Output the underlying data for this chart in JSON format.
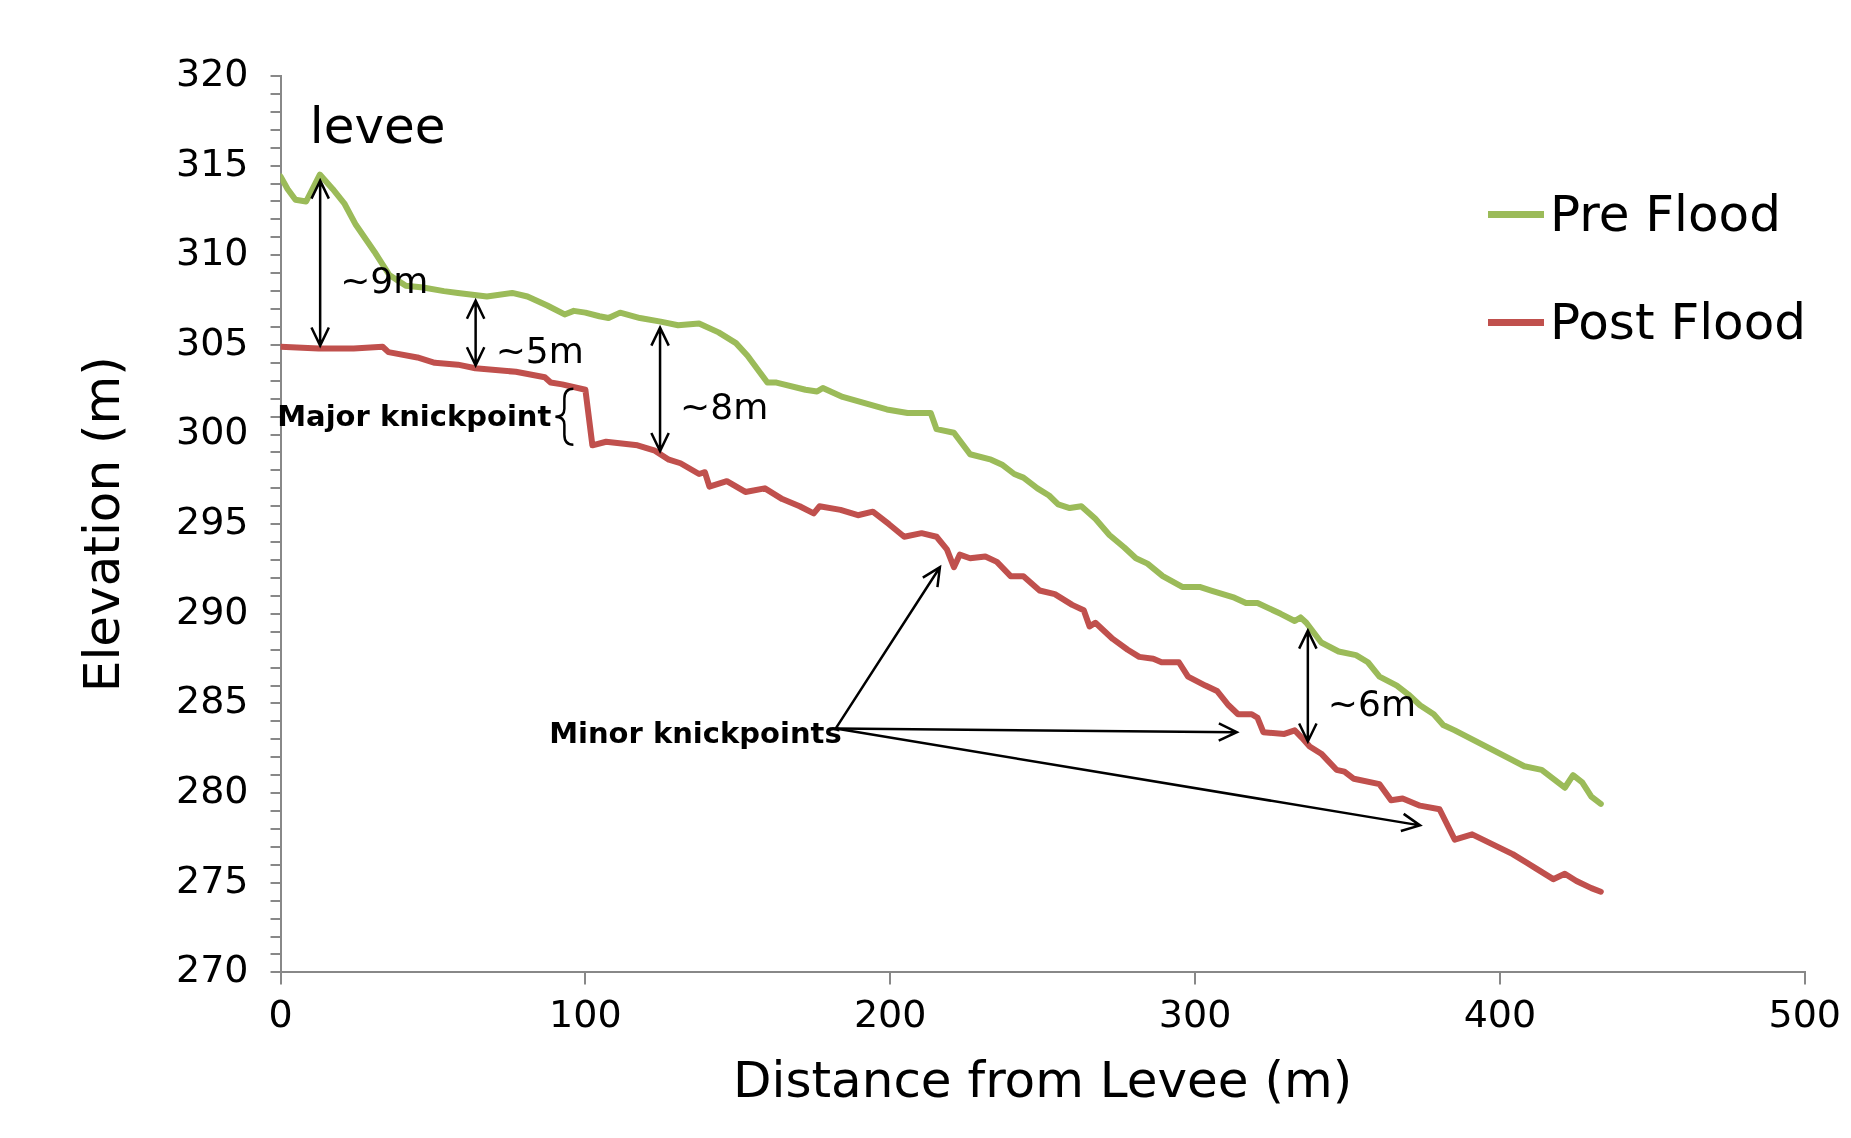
{
  "chart_data": {
    "type": "line",
    "xlabel": "Distance from Levee (m)",
    "ylabel": "Elevation (m)",
    "xlim": [
      0,
      500
    ],
    "xticks": [
      0,
      100,
      200,
      300,
      400,
      500
    ],
    "ylim": [
      270,
      320
    ],
    "yticks": [
      270,
      {
        "value": 271,
        "label": null
      },
      {
        "value": 272,
        "label": null
      },
      {
        "value": 273,
        "label": null
      },
      {
        "value": 274,
        "label": null
      },
      275,
      {
        "value": 276,
        "label": null
      },
      {
        "value": 277,
        "label": null
      },
      {
        "value": 278,
        "label": null
      },
      {
        "value": 279,
        "label": null
      },
      280,
      {
        "value": 281,
        "label": null
      },
      {
        "value": 282,
        "label": null
      },
      {
        "value": 283,
        "label": null
      },
      {
        "value": 284,
        "label": null
      },
      285,
      {
        "value": 286,
        "label": null
      },
      {
        "value": 287,
        "label": null
      },
      {
        "value": 288,
        "label": null
      },
      {
        "value": 289,
        "label": null
      },
      290,
      {
        "value": 291,
        "label": null
      },
      {
        "value": 292,
        "label": null
      },
      {
        "value": 293,
        "label": null
      },
      {
        "value": 294,
        "label": null
      },
      295,
      {
        "value": 296,
        "label": null
      },
      {
        "value": 297,
        "label": null
      },
      {
        "value": 298,
        "label": null
      },
      {
        "value": 299,
        "label": null
      },
      300,
      {
        "value": 301,
        "label": null
      },
      {
        "value": 302,
        "label": null
      },
      {
        "value": 303,
        "label": null
      },
      {
        "value": 304,
        "label": null
      },
      305,
      {
        "value": 306,
        "label": null
      },
      {
        "value": 307,
        "label": null
      },
      {
        "value": 308,
        "label": null
      },
      {
        "value": 309,
        "label": null
      },
      310,
      {
        "value": 311,
        "label": null
      },
      {
        "value": 312,
        "label": null
      },
      {
        "value": 313,
        "label": null
      },
      {
        "value": 314,
        "label": null
      },
      315,
      {
        "value": 316,
        "label": null
      },
      {
        "value": 317,
        "label": null
      },
      {
        "value": 318,
        "label": null
      },
      {
        "value": 319,
        "label": null
      },
      320
    ],
    "grid": false,
    "legend": "top right",
    "marker": "none",
    "line_style": "solid",
    "series": [
      {
        "name": "Pre Flood",
        "color": "#9bbb59",
        "x": [
          0,
          2.3,
          4.9,
          8.4,
          12.9,
          17.1,
          20.9,
          24.7,
          30.8,
          35.7,
          41.1,
          46.8,
          53.6,
          58.2,
          67.7,
          76,
          81,
          87.5,
          93.2,
          96.2,
          100,
          104.6,
          107.6,
          111.4,
          117.9,
          124.7,
          130.4,
          137.3,
          143.7,
          149.4,
          153.2,
          159.7,
          162.7,
          172.2,
          176,
          177.9,
          184.4,
          198.9,
          205.7,
          213.3,
          215.2,
          220.9,
          226.2,
          233.1,
          236.9,
          240.7,
          243.7,
          248.3,
          252.1,
          255.1,
          258.9,
          262.7,
          267.3,
          271.9,
          276.8,
          280.6,
          284.4,
          289.4,
          295.8,
          301.5,
          305.3,
          312.9,
          316.7,
          320.5,
          328.1,
          332.7,
          334.6,
          336.5,
          341.4,
          347.1,
          352.8,
          356.7,
          360.5,
          366.2,
          370,
          373.8,
          378.3,
          381.4,
          385.2,
          408,
          413.7,
          421.3,
          424,
          427,
          430,
          433.1
        ],
        "values": [
          314.4,
          313.7,
          313.1,
          313,
          314.5,
          313.7,
          312.9,
          311.7,
          310.2,
          308.9,
          308.3,
          308.2,
          308,
          307.9,
          307.7,
          307.9,
          307.7,
          307.2,
          306.7,
          306.9,
          306.8,
          306.6,
          306.5,
          306.8,
          306.5,
          306.3,
          306.1,
          306.2,
          305.7,
          305.1,
          304.4,
          302.9,
          302.9,
          302.5,
          302.4,
          302.6,
          302.1,
          301.4,
          301.2,
          301.2,
          300.3,
          300.1,
          298.9,
          298.6,
          298.3,
          297.8,
          297.6,
          297,
          296.6,
          296.1,
          295.9,
          296,
          295.3,
          294.4,
          293.7,
          293.1,
          292.8,
          292.1,
          291.5,
          291.5,
          291.3,
          290.9,
          290.6,
          290.6,
          290,
          289.6,
          289.8,
          289.5,
          288.4,
          287.9,
          287.7,
          287.3,
          286.5,
          286,
          285.5,
          284.9,
          284.4,
          283.8,
          283.5,
          281.5,
          281.3,
          280.3,
          281,
          280.6,
          279.8,
          279.4
        ]
      },
      {
        "name": "Post Flood",
        "color": "#c0504d",
        "x": [
          0,
          12.5,
          24,
          33.5,
          35.4,
          44.9,
          50.6,
          58.2,
          63.9,
          77.2,
          86.7,
          88.6,
          92.4,
          100,
          102.3,
          106.8,
          117.1,
          122.8,
          127.4,
          131.2,
          137.3,
          139.2,
          140.7,
          146.4,
          152.5,
          158.9,
          164.6,
          170.3,
          174.9,
          176.8,
          183.7,
          189.4,
          194.3,
          199.6,
          204.6,
          210.3,
          215.2,
          218.6,
          220.9,
          222.8,
          226.2,
          231.2,
          235,
          239.5,
          243.7,
          249,
          254,
          259.7,
          263.5,
          265.4,
          267.3,
          273,
          277.9,
          281.7,
          286.3,
          289,
          294.7,
          297.7,
          303.4,
          307.2,
          311,
          314.1,
          318.6,
          320.5,
          322.4,
          329.3,
          332.7,
          335,
          337.6,
          341.4,
          346.4,
          349,
          352.1,
          360.5,
          364.3,
          368.1,
          373.8,
          380.2,
          385.2,
          390.9,
          404.2,
          411.8,
          417.5,
          421.3,
          425.1,
          430,
          433.1
        ],
        "values": [
          304.9,
          304.8,
          304.8,
          304.9,
          304.6,
          304.3,
          304,
          303.9,
          303.7,
          303.5,
          303.2,
          302.9,
          302.8,
          302.5,
          299.4,
          299.6,
          299.4,
          299.1,
          298.6,
          298.4,
          297.8,
          297.9,
          297.1,
          297.4,
          296.8,
          297,
          296.4,
          296,
          295.6,
          296,
          295.8,
          295.5,
          295.7,
          295,
          294.3,
          294.5,
          294.3,
          293.6,
          292.6,
          293.3,
          293.1,
          293.2,
          292.9,
          292.1,
          292.1,
          291.3,
          291.1,
          290.5,
          290.2,
          289.3,
          289.5,
          288.6,
          288,
          287.6,
          287.5,
          287.3,
          287.3,
          286.5,
          286,
          285.7,
          284.9,
          284.4,
          284.4,
          284.2,
          283.4,
          283.3,
          283.5,
          283.1,
          282.6,
          282.2,
          281.3,
          281.2,
          280.8,
          280.5,
          279.6,
          279.7,
          279.3,
          279.1,
          277.4,
          277.7,
          276.6,
          275.8,
          275.2,
          275.5,
          275.1,
          274.7,
          274.5
        ]
      }
    ],
    "annotations": [
      {
        "text": "levee",
        "x": 12.9,
        "y": 314.5
      },
      {
        "text": "~9m",
        "x": 13,
        "y": 314.5
      },
      {
        "text": "~5m",
        "x": 64,
        "y": 307.8
      },
      {
        "text": "~8m",
        "x": 124.5,
        "y": 306.3
      },
      {
        "text": "~6m",
        "x": 337,
        "y": 289.4
      },
      {
        "text": "Major knickpoint",
        "x": 100,
        "y": 301
      },
      "Minor knickpoints"
    ]
  }
}
